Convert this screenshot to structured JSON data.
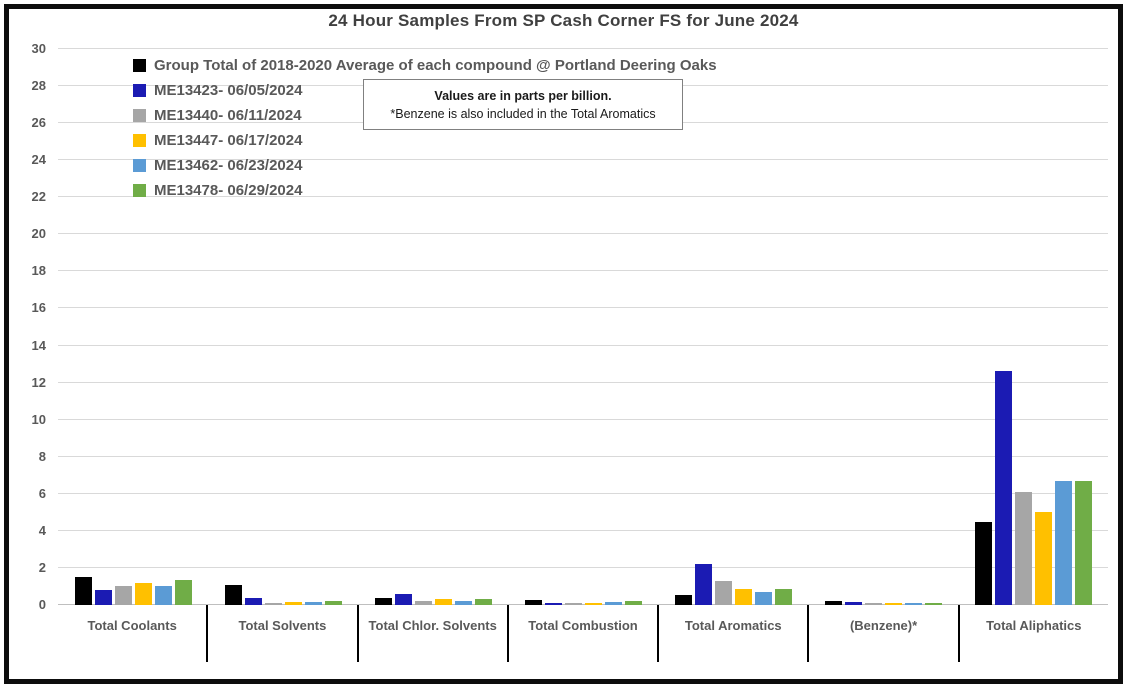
{
  "chart": {
    "title": "24 Hour Samples From SP Cash Corner FS for June 2024",
    "note": {
      "line1": "Values are in parts per billion.",
      "line2": "*Benzene is also included in the Total Aromatics"
    }
  },
  "style": {
    "axis_text_color": "#595959",
    "gridline_color": "#d9d9d9",
    "frame_color": "#0d0d0d"
  },
  "chart_data": {
    "type": "bar",
    "title": "24 Hour Samples From SP Cash Corner FS for June 2024",
    "xlabel": "",
    "ylabel": "",
    "ylim": [
      0,
      30
    ],
    "ytick_step": 2,
    "grid": true,
    "legend_position": "top-left inside plot area",
    "annotations": [
      "Values are in parts per billion.",
      "*Benzene is also included in the Total Aromatics"
    ],
    "categories": [
      "Total Coolants",
      "Total Solvents",
      "Total Chlor. Solvents",
      "Total Combustion",
      "Total Aromatics",
      "(Benzene)*",
      "Total Aliphatics"
    ],
    "series": [
      {
        "name": "Group Total of 2018-2020 Average of each compound @ Portland Deering Oaks",
        "color": "#000000",
        "values": [
          1.5,
          1.1,
          0.4,
          0.25,
          0.55,
          0.2,
          4.5
        ]
      },
      {
        "name": "ME13423- 06/05/2024",
        "color": "#1b1bb3",
        "values": [
          0.8,
          0.4,
          0.6,
          0.1,
          2.2,
          0.15,
          12.6
        ]
      },
      {
        "name": "ME13440- 06/11/2024",
        "color": "#a6a6a6",
        "values": [
          1.0,
          0.1,
          0.2,
          0.1,
          1.3,
          0.1,
          6.1
        ]
      },
      {
        "name": "ME13447- 06/17/2024",
        "color": "#ffc000",
        "values": [
          1.2,
          0.15,
          0.35,
          0.1,
          0.85,
          0.1,
          5.0
        ]
      },
      {
        "name": "ME13462- 06/23/2024",
        "color": "#5b9bd5",
        "values": [
          1.0,
          0.15,
          0.2,
          0.15,
          0.7,
          0.1,
          6.7
        ]
      },
      {
        "name": "ME13478- 06/29/2024",
        "color": "#70ad47",
        "values": [
          1.35,
          0.2,
          0.3,
          0.2,
          0.85,
          0.1,
          6.7
        ]
      }
    ]
  }
}
